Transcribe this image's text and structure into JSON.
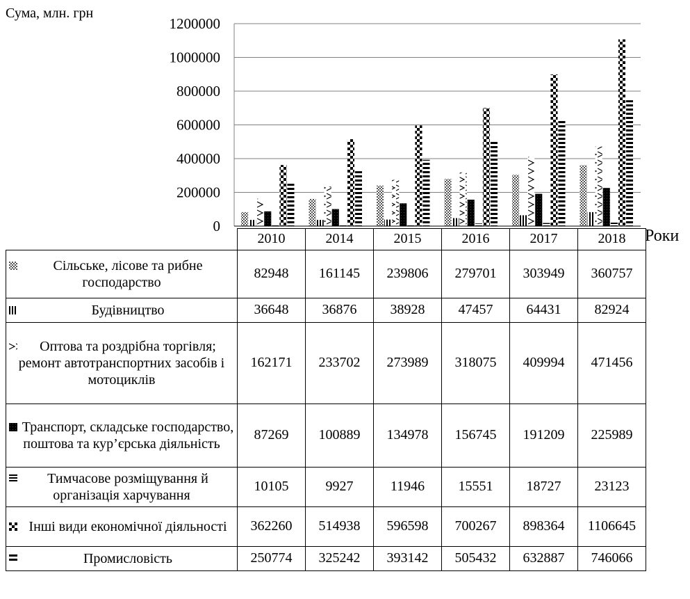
{
  "chart_data": {
    "type": "bar",
    "ylabel": "Сума, млн. грн",
    "xlabel": "Роки",
    "categories": [
      "2010",
      "2014",
      "2015",
      "2016",
      "2017",
      "2018"
    ],
    "ylim": [
      0,
      1200000
    ],
    "yticks": [
      "0",
      "200000",
      "400000",
      "600000",
      "800000",
      "1000000",
      "1200000"
    ],
    "gridlines": true,
    "legend": "data-table-below",
    "series": [
      {
        "name": "Сільське, лісове та рибне господарство",
        "pattern": "dots-gray",
        "values": [
          82948,
          161145,
          239806,
          279701,
          303949,
          360757
        ]
      },
      {
        "name": "Будівництво",
        "pattern": "vertical-lines",
        "values": [
          36648,
          36876,
          38928,
          47457,
          64431,
          82924
        ]
      },
      {
        "name": "Оптова та роздрібна торгівля; ремонт автотранспортних засобів і мотоциклів",
        "pattern": "zigzag",
        "values": [
          162171,
          233702,
          273989,
          318075,
          409994,
          471456
        ]
      },
      {
        "name": "Транспорт, складське господарство, поштова та кур’єрська діяльність",
        "pattern": "solid-black",
        "values": [
          87269,
          100889,
          134978,
          156745,
          191209,
          225989
        ]
      },
      {
        "name": "Тимчасове розміщування й організація харчування",
        "pattern": "horizontal-lines",
        "values": [
          10105,
          9927,
          11946,
          15551,
          18727,
          23123
        ]
      },
      {
        "name": "Інші види економічної діяльності",
        "pattern": "checker",
        "values": [
          362260,
          514938,
          596598,
          700267,
          898364,
          1106645
        ]
      },
      {
        "name": "Промисловість",
        "pattern": "thick-horizontal",
        "values": [
          250774,
          325242,
          393142,
          505432,
          632887,
          746066
        ]
      }
    ]
  }
}
